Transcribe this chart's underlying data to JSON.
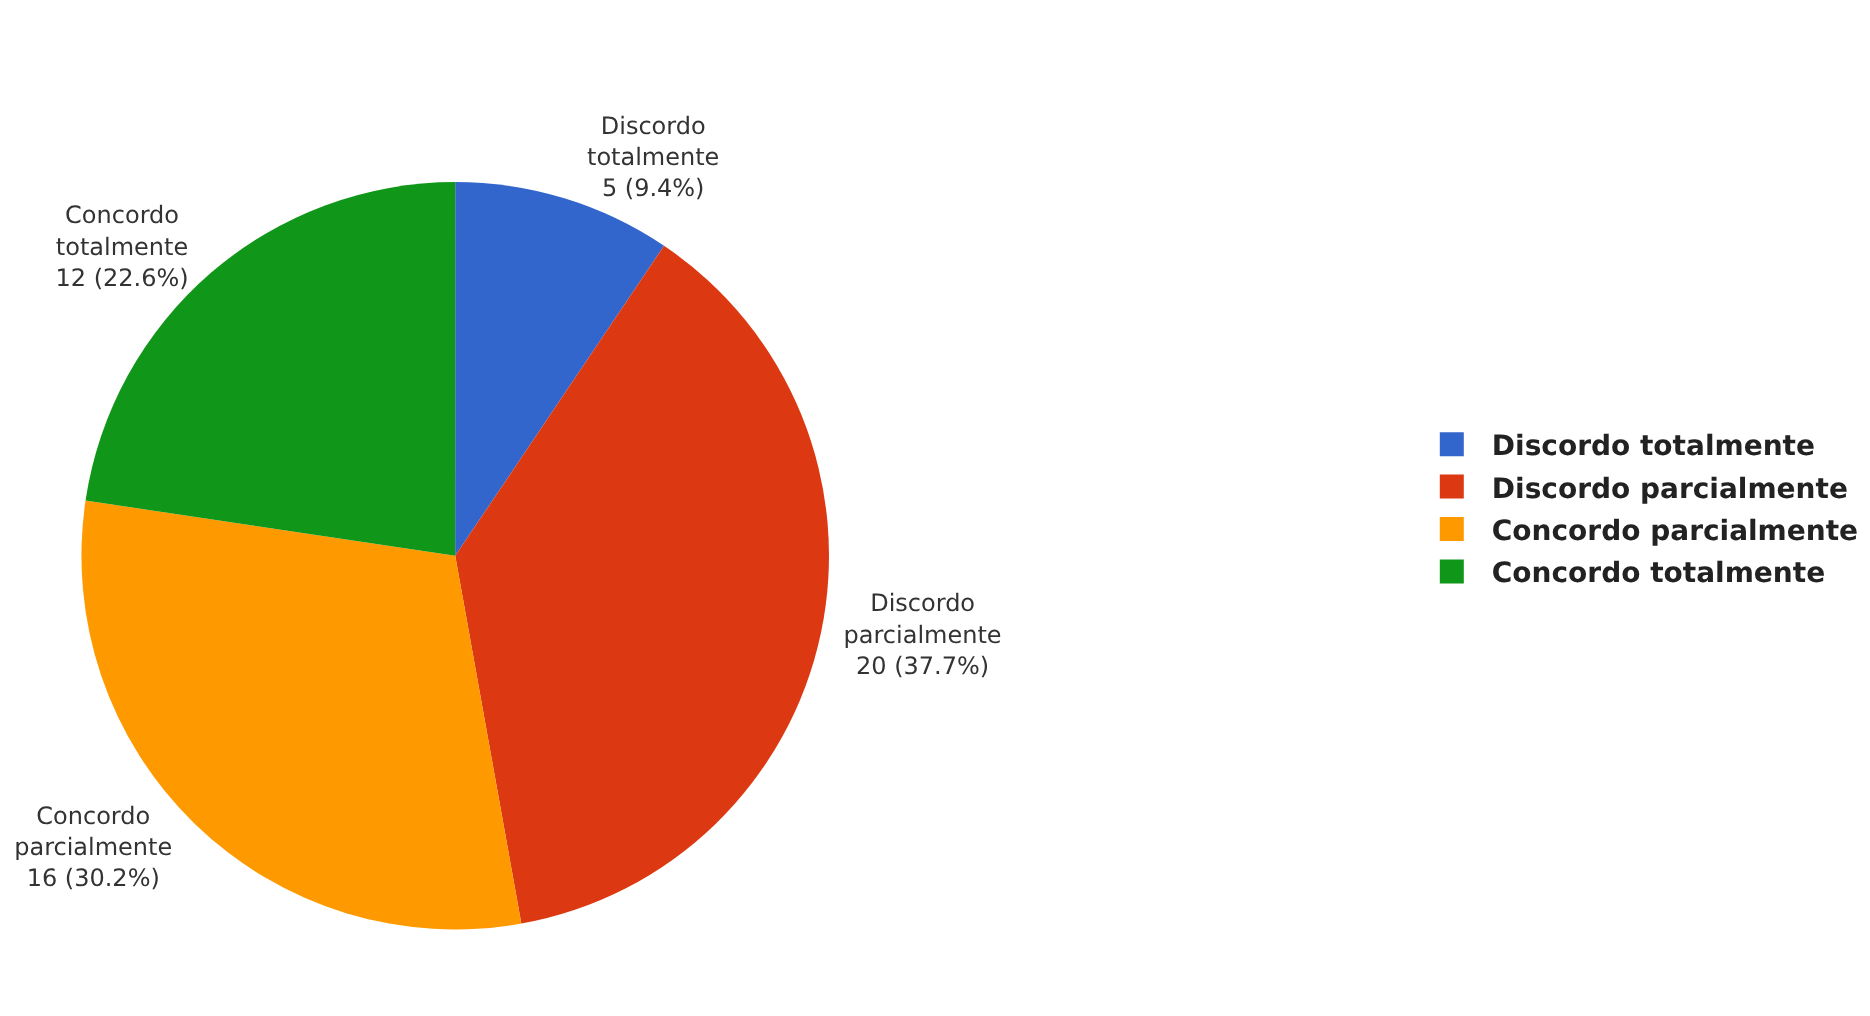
{
  "chart_data": {
    "type": "pie",
    "categories": [
      "Discordo totalmente",
      "Discordo parcialmente",
      "Concordo parcialmente",
      "Concordo totalmente"
    ],
    "values": [
      5,
      20,
      16,
      12
    ],
    "colors": [
      "#3366cc",
      "#dc3912",
      "#ff9900",
      "#109618"
    ],
    "value_labels": [
      "5 (9.4%)",
      "20 (37.7%)",
      "16 (30.2%)",
      "12 (22.6%)"
    ],
    "legend": "right"
  }
}
